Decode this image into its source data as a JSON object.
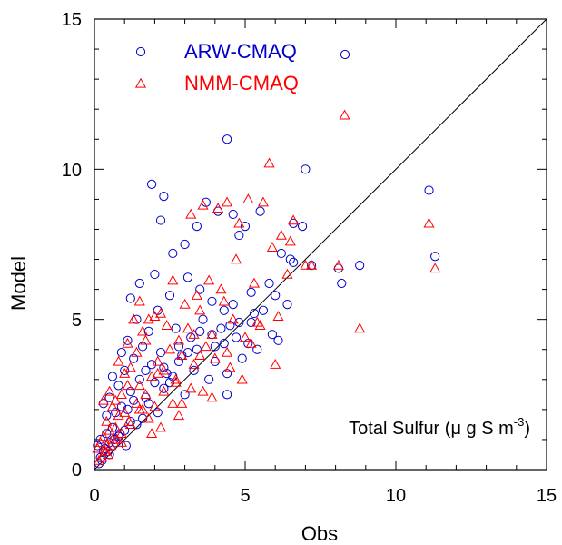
{
  "chart_data": {
    "type": "scatter",
    "title": "",
    "xlabel": "Obs",
    "ylabel": "Model",
    "annotation": {
      "prefix": "Total Sulfur (",
      "mu": "μ",
      "mid": " g S m",
      "sup": "-3",
      "suffix": ")"
    },
    "xlim": [
      0,
      15
    ],
    "ylim": [
      0,
      15
    ],
    "x_ticks": [
      "0",
      "5",
      "10",
      "15"
    ],
    "y_ticks": [
      "0",
      "5",
      "10",
      "15"
    ],
    "reference_line": {
      "label": "",
      "x": [
        0,
        15
      ],
      "y": [
        0,
        15
      ]
    },
    "legend_position": "top-left",
    "series": [
      {
        "name": "ARW-CMAQ",
        "marker": "circle",
        "color": "#0000cc",
        "x": [
          4.4,
          1.9,
          2.3,
          2.2,
          3.4,
          4.1,
          3.7,
          4.6,
          3.0,
          2.6,
          4.8,
          5.0,
          5.5,
          6.6,
          6.2,
          6.5,
          6.6,
          5.8,
          7.0,
          6.9,
          7.2,
          8.1,
          8.2,
          8.8,
          11.1,
          11.3,
          5.2,
          4.6,
          4.4,
          1.5,
          2.0,
          2.5,
          3.1,
          3.5,
          3.9,
          4.3,
          4.8,
          5.3,
          5.9,
          6.1,
          1.2,
          1.4,
          1.8,
          2.1,
          2.7,
          3.2,
          3.6,
          4.0,
          4.5,
          5.1,
          0.9,
          1.1,
          1.3,
          1.6,
          1.9,
          2.2,
          2.4,
          2.8,
          3.3,
          3.8,
          0.6,
          0.8,
          1.0,
          1.2,
          1.5,
          1.7,
          2.0,
          2.3,
          2.6,
          3.0,
          0.3,
          0.4,
          0.5,
          0.7,
          0.9,
          1.1,
          1.3,
          1.6,
          1.8,
          2.1,
          0.1,
          0.2,
          0.3,
          0.4,
          0.5,
          0.6,
          0.8,
          1.0,
          1.2,
          1.4,
          2.9,
          3.4,
          3.9,
          4.2,
          4.7,
          5.2,
          5.6,
          6.0,
          6.4,
          4.4,
          2.3,
          2.8,
          3.1,
          3.5,
          4.0,
          4.3,
          4.9,
          5.4,
          1.7,
          2.5,
          0.2,
          0.15,
          0.35,
          0.5,
          0.7,
          0.25,
          0.45,
          0.65,
          0.85,
          1.05
        ],
        "y": [
          11.0,
          9.5,
          9.1,
          8.3,
          8.1,
          8.6,
          8.9,
          8.5,
          7.5,
          7.2,
          7.8,
          8.1,
          8.6,
          8.2,
          7.2,
          7.0,
          6.9,
          6.2,
          10.0,
          8.1,
          6.8,
          6.7,
          6.2,
          6.8,
          9.3,
          7.1,
          5.9,
          5.5,
          2.5,
          6.2,
          6.5,
          5.8,
          6.4,
          6.0,
          5.6,
          5.3,
          4.9,
          5.2,
          4.5,
          4.3,
          5.7,
          5.0,
          4.6,
          5.3,
          4.7,
          4.4,
          5.0,
          4.1,
          4.8,
          4.2,
          3.9,
          4.3,
          3.7,
          4.1,
          3.5,
          3.9,
          3.2,
          3.6,
          3.3,
          3.0,
          3.1,
          2.8,
          3.3,
          2.6,
          3.0,
          2.4,
          2.9,
          2.7,
          3.1,
          2.5,
          2.2,
          1.8,
          2.4,
          1.9,
          2.1,
          2.0,
          2.3,
          1.7,
          2.2,
          1.9,
          0.8,
          1.0,
          0.6,
          1.2,
          0.9,
          1.4,
          1.1,
          1.3,
          1.6,
          1.5,
          3.8,
          4.0,
          4.5,
          4.7,
          4.4,
          4.9,
          5.3,
          5.8,
          5.5,
          3.2,
          3.4,
          4.1,
          3.9,
          4.6,
          3.6,
          4.2,
          3.7,
          4.0,
          3.3,
          2.9,
          0.4,
          0.2,
          0.7,
          0.5,
          0.9,
          0.3,
          0.6,
          1.0,
          1.2,
          0.8
        ]
      },
      {
        "name": "NMM-CMAQ",
        "marker": "triangle",
        "color": "#ff0000",
        "x": [
          8.3,
          5.8,
          5.1,
          4.4,
          3.6,
          3.2,
          4.1,
          4.8,
          5.6,
          6.2,
          6.4,
          7.0,
          8.1,
          8.8,
          11.1,
          11.3,
          6.5,
          6.6,
          7.2,
          5.9,
          5.3,
          4.7,
          4.2,
          3.8,
          3.4,
          3.0,
          2.6,
          2.2,
          1.8,
          1.5,
          1.3,
          1.6,
          2.0,
          2.4,
          2.8,
          3.1,
          3.5,
          3.9,
          4.3,
          4.6,
          5.0,
          5.5,
          6.0,
          1.1,
          1.4,
          1.7,
          2.1,
          2.5,
          2.9,
          3.3,
          3.7,
          4.0,
          0.8,
          1.0,
          1.2,
          1.5,
          1.9,
          2.3,
          2.7,
          3.2,
          0.5,
          0.7,
          0.9,
          1.1,
          1.4,
          1.7,
          2.0,
          2.3,
          2.6,
          0.3,
          0.4,
          0.6,
          0.8,
          1.0,
          1.2,
          1.5,
          1.8,
          0.1,
          0.2,
          0.3,
          0.4,
          0.5,
          0.6,
          0.7,
          0.9,
          2.2,
          2.8,
          3.6,
          4.5,
          5.2,
          6.1,
          4.9,
          3.9,
          2.9,
          1.9,
          0.9,
          2.1,
          3.3,
          4.4,
          5.4,
          1.6,
          2.7,
          3.5,
          0.35,
          0.55,
          0.75,
          1.15,
          0.25,
          0.45,
          0.15
        ],
        "y": [
          11.8,
          10.2,
          9.0,
          8.9,
          8.8,
          8.5,
          8.7,
          8.2,
          8.9,
          7.8,
          6.5,
          6.8,
          6.8,
          4.7,
          8.2,
          6.7,
          7.6,
          8.3,
          6.8,
          7.4,
          6.2,
          7.0,
          6.0,
          6.3,
          5.8,
          5.5,
          6.3,
          5.2,
          5.0,
          5.6,
          5.0,
          4.6,
          5.1,
          4.8,
          4.3,
          4.7,
          5.3,
          4.5,
          5.6,
          5.0,
          4.4,
          4.8,
          3.5,
          4.2,
          3.9,
          4.3,
          3.6,
          4.0,
          3.8,
          3.5,
          4.1,
          3.7,
          3.6,
          3.2,
          3.4,
          2.8,
          3.1,
          3.3,
          2.9,
          2.7,
          2.6,
          2.3,
          2.5,
          2.8,
          2.2,
          2.5,
          2.1,
          2.6,
          2.2,
          2.3,
          1.6,
          2.1,
          1.8,
          1.9,
          1.5,
          2.0,
          1.7,
          0.7,
          0.9,
          1.1,
          0.8,
          1.3,
          1.0,
          1.4,
          1.2,
          1.4,
          1.8,
          2.6,
          3.4,
          4.2,
          5.1,
          3.0,
          2.4,
          2.2,
          1.2,
          0.9,
          3.2,
          4.5,
          3.9,
          4.9,
          2.0,
          3.0,
          3.8,
          0.6,
          0.8,
          1.0,
          1.6,
          0.4,
          0.5,
          0.3
        ]
      }
    ]
  }
}
